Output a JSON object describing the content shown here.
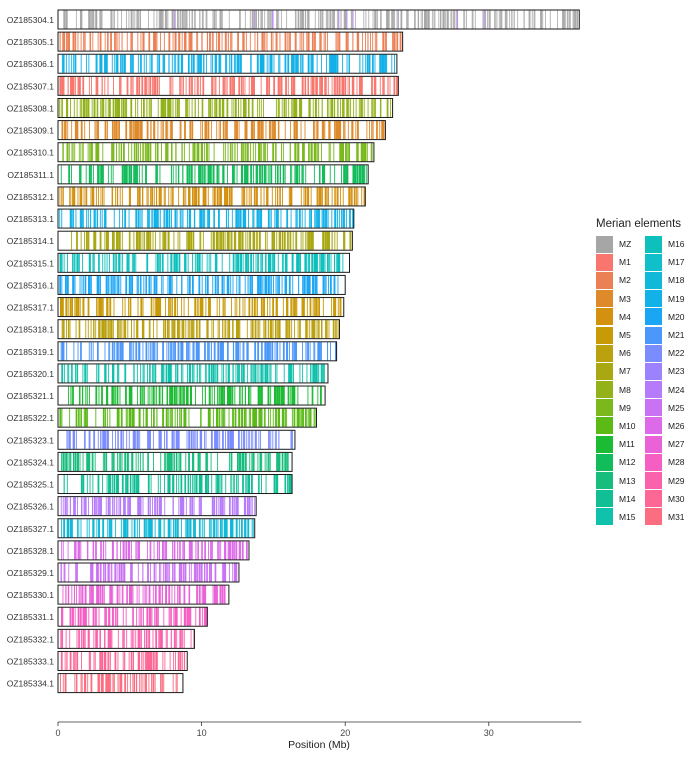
{
  "chart_data": {
    "type": "chromosome-ideogram",
    "xlabel": "Position (Mb)",
    "xlim": [
      0,
      36.3
    ],
    "x_ticks": [
      "0",
      "10",
      "20",
      "30"
    ],
    "legend_title": "Merian elements",
    "legend": [
      {
        "name": "MZ",
        "color": "#a6a6a6"
      },
      {
        "name": "M1",
        "color": "#f8766d"
      },
      {
        "name": "M2",
        "color": "#ec8055"
      },
      {
        "name": "M3",
        "color": "#de8a2b"
      },
      {
        "name": "M4",
        "color": "#d4900f"
      },
      {
        "name": "M5",
        "color": "#c99a08"
      },
      {
        "name": "M6",
        "color": "#bba10d"
      },
      {
        "name": "M7",
        "color": "#a9a812"
      },
      {
        "name": "M8",
        "color": "#93b21a"
      },
      {
        "name": "M9",
        "color": "#7bb81c"
      },
      {
        "name": "M10",
        "color": "#5bba16"
      },
      {
        "name": "M11",
        "color": "#1cbb34"
      },
      {
        "name": "M12",
        "color": "#13bc5a"
      },
      {
        "name": "M13",
        "color": "#17bd7c"
      },
      {
        "name": "M14",
        "color": "#12bf95"
      },
      {
        "name": "M15",
        "color": "#10c1ac"
      },
      {
        "name": "M16",
        "color": "#0ec0bc"
      },
      {
        "name": "M17",
        "color": "#10bfca"
      },
      {
        "name": "M18",
        "color": "#10b9d8"
      },
      {
        "name": "M19",
        "color": "#12b1e8"
      },
      {
        "name": "M20",
        "color": "#1ba6f5"
      },
      {
        "name": "M21",
        "color": "#4b97fb"
      },
      {
        "name": "M22",
        "color": "#7a8cff"
      },
      {
        "name": "M23",
        "color": "#9c82ff"
      },
      {
        "name": "M24",
        "color": "#b67bfb"
      },
      {
        "name": "M25",
        "color": "#ca72f4"
      },
      {
        "name": "M26",
        "color": "#dc6ae9"
      },
      {
        "name": "M27",
        "color": "#ea62d8"
      },
      {
        "name": "M28",
        "color": "#f55fc3"
      },
      {
        "name": "M29",
        "color": "#fa62ab"
      },
      {
        "name": "M30",
        "color": "#fc6795"
      },
      {
        "name": "M31",
        "color": "#fb6d80"
      }
    ],
    "chromosomes": [
      {
        "name": "OZ185304.1",
        "length": 36.3,
        "element": "MZ",
        "accent": "M24"
      },
      {
        "name": "OZ185305.1",
        "length": 24.0,
        "element": "M2"
      },
      {
        "name": "OZ185306.1",
        "length": 23.6,
        "element": "M19"
      },
      {
        "name": "OZ185307.1",
        "length": 23.7,
        "element": "M1"
      },
      {
        "name": "OZ185308.1",
        "length": 23.3,
        "element": "M8"
      },
      {
        "name": "OZ185309.1",
        "length": 22.8,
        "element": "M3"
      },
      {
        "name": "OZ185310.1",
        "length": 22.0,
        "element": "M9"
      },
      {
        "name": "OZ185311.1",
        "length": 21.6,
        "element": "M12"
      },
      {
        "name": "OZ185312.1",
        "length": 21.4,
        "element": "M4"
      },
      {
        "name": "OZ185313.1",
        "length": 20.6,
        "element": "M19"
      },
      {
        "name": "OZ185314.1",
        "length": 20.5,
        "element": "M7"
      },
      {
        "name": "OZ185315.1",
        "length": 20.3,
        "element": "M16"
      },
      {
        "name": "OZ185316.1",
        "length": 20.0,
        "element": "M20"
      },
      {
        "name": "OZ185317.1",
        "length": 19.9,
        "element": "M5"
      },
      {
        "name": "OZ185318.1",
        "length": 19.6,
        "element": "M6"
      },
      {
        "name": "OZ185319.1",
        "length": 19.4,
        "element": "M21"
      },
      {
        "name": "OZ185320.1",
        "length": 18.8,
        "element": "M15"
      },
      {
        "name": "OZ185321.1",
        "length": 18.6,
        "element": "M11"
      },
      {
        "name": "OZ185322.1",
        "length": 18.0,
        "element": "M10"
      },
      {
        "name": "OZ185323.1",
        "length": 16.5,
        "element": "M22"
      },
      {
        "name": "OZ185324.1",
        "length": 16.3,
        "element": "M13"
      },
      {
        "name": "OZ185325.1",
        "length": 16.3,
        "element": "M14"
      },
      {
        "name": "OZ185326.1",
        "length": 13.8,
        "element": "M24"
      },
      {
        "name": "OZ185327.1",
        "length": 13.7,
        "element": "M18"
      },
      {
        "name": "OZ185328.1",
        "length": 13.3,
        "element": "M26"
      },
      {
        "name": "OZ185329.1",
        "length": 12.6,
        "element": "M25"
      },
      {
        "name": "OZ185330.1",
        "length": 11.9,
        "element": "M27"
      },
      {
        "name": "OZ185331.1",
        "length": 10.4,
        "element": "M28"
      },
      {
        "name": "OZ185332.1",
        "length": 9.5,
        "element": "M29"
      },
      {
        "name": "OZ185333.1",
        "length": 9.0,
        "element": "M30"
      },
      {
        "name": "OZ185334.1",
        "length": 8.7,
        "element": "M31"
      }
    ]
  }
}
